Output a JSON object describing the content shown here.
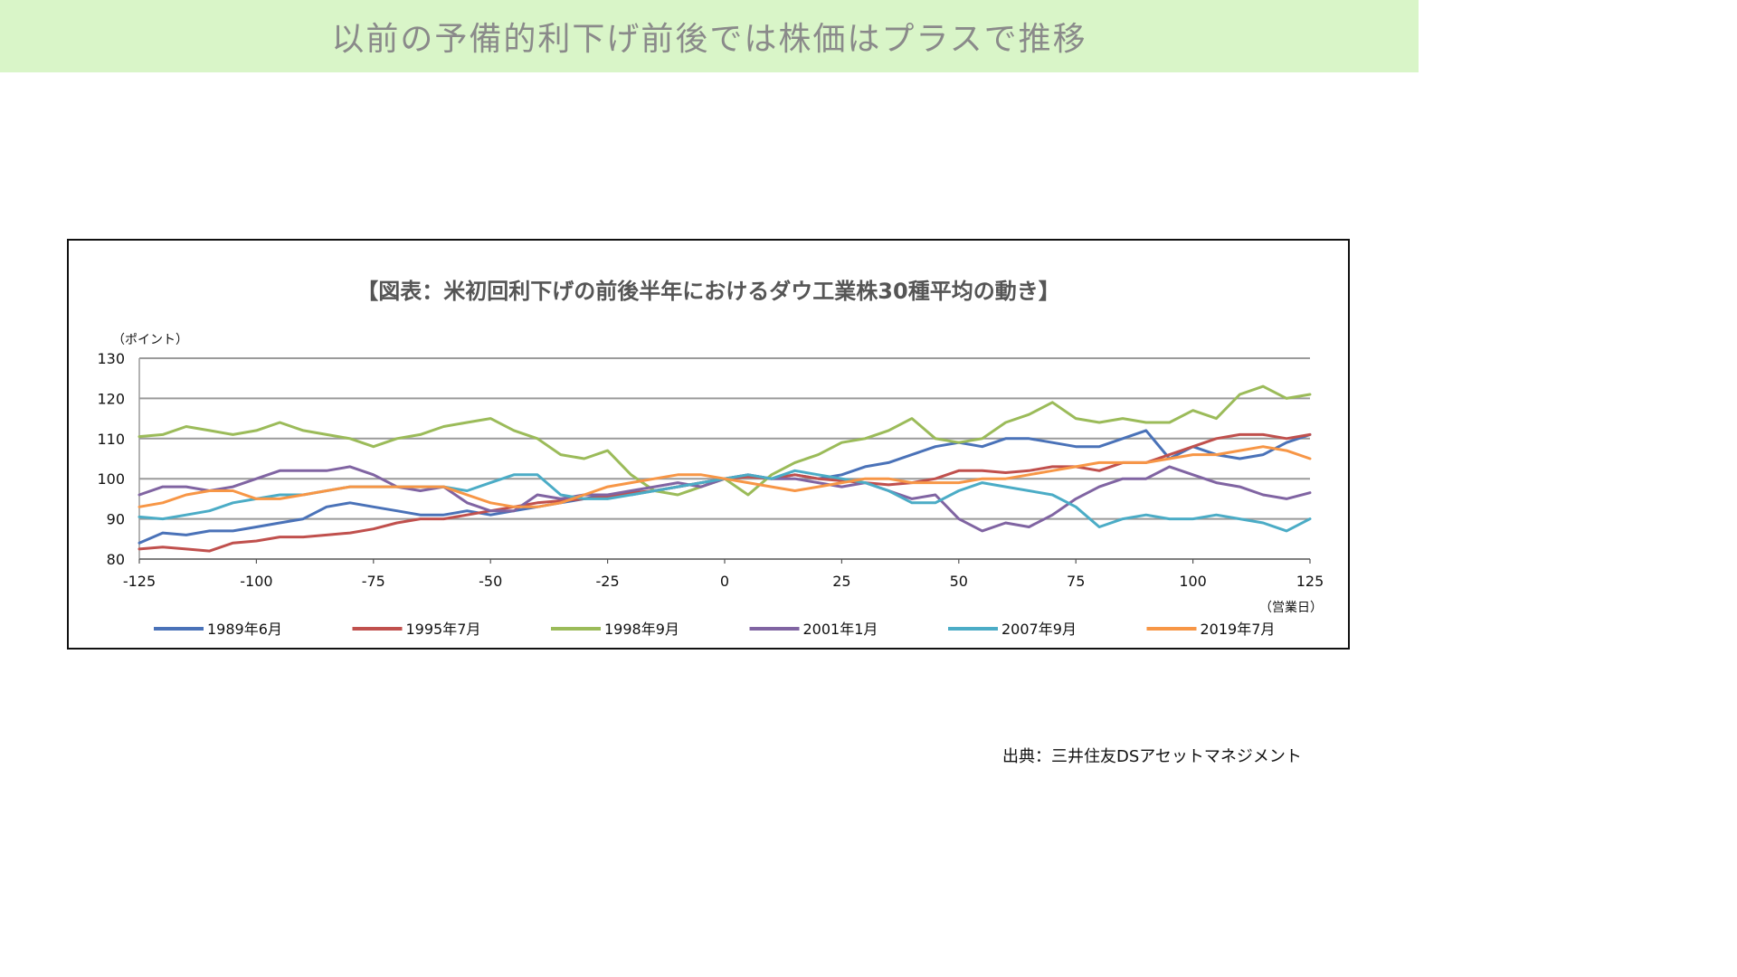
{
  "banner": {
    "title": "以前の予備的利下げ前後では株価はプラスで推移"
  },
  "source_note": "出典：三井住友DSアセットマネジメント",
  "chart_data": {
    "type": "line",
    "title": "【図表：米初回利下げの前後半年におけるダウ工業株30種平均の動き】",
    "ylabel": "（ポイント）",
    "xlabel": "（営業日）",
    "ylim": [
      80,
      130
    ],
    "yticks": [
      80,
      90,
      100,
      110,
      120,
      130
    ],
    "xlim": [
      -125,
      125
    ],
    "xticks": [
      -125,
      -100,
      -75,
      -50,
      -25,
      0,
      25,
      50,
      75,
      100,
      125
    ],
    "xtick_labels": [
      "-125",
      "-100",
      "-75",
      "-50",
      "-25",
      "0",
      "25",
      "50",
      "75",
      "100",
      "125"
    ],
    "grid": "horizontal",
    "legend_position": "bottom",
    "x": [
      -125,
      -120,
      -115,
      -110,
      -105,
      -100,
      -95,
      -90,
      -85,
      -80,
      -75,
      -70,
      -65,
      -60,
      -55,
      -50,
      -45,
      -40,
      -35,
      -30,
      -25,
      -20,
      -15,
      -10,
      -5,
      0,
      5,
      10,
      15,
      20,
      25,
      30,
      35,
      40,
      45,
      50,
      55,
      60,
      65,
      70,
      75,
      80,
      85,
      90,
      95,
      100,
      105,
      110,
      115,
      120,
      125
    ],
    "series": [
      {
        "name": "1989年6月",
        "color": "#4a72b8",
        "values": [
          84,
          86.5,
          86,
          87,
          87,
          88,
          89,
          90,
          93,
          94,
          93,
          92,
          91,
          91,
          92,
          91,
          92,
          93,
          94,
          95,
          96,
          96,
          97,
          98,
          99,
          100,
          101,
          100,
          101,
          100,
          101,
          103,
          104,
          106,
          108,
          109,
          108,
          110,
          110,
          109,
          108,
          108,
          110,
          112,
          105,
          108,
          106,
          105,
          106,
          109,
          111
        ]
      },
      {
        "name": "1995年7月",
        "color": "#c0504d",
        "values": [
          82.5,
          83,
          82.5,
          82,
          84,
          84.5,
          85.5,
          85.5,
          86,
          86.5,
          87.5,
          89,
          90,
          90,
          91,
          92,
          93,
          94,
          94.5,
          95,
          95.5,
          96.5,
          97,
          98,
          99,
          100,
          100.5,
          100,
          101,
          100,
          99.5,
          99,
          98.5,
          99,
          100,
          102,
          102,
          101.5,
          102,
          103,
          103,
          102,
          104,
          104,
          106,
          108,
          110,
          111,
          111,
          110,
          111
        ]
      },
      {
        "name": "1998年9月",
        "color": "#9bbb59",
        "values": [
          110.5,
          111,
          113,
          112,
          111,
          112,
          114,
          112,
          111,
          110,
          108,
          110,
          111,
          113,
          114,
          115,
          112,
          110,
          106,
          105,
          107,
          101,
          97,
          96,
          98,
          100,
          96,
          101,
          104,
          106,
          109,
          110,
          112,
          115,
          110,
          109,
          110,
          114,
          116,
          119,
          115,
          114,
          115,
          114,
          114,
          117,
          115,
          121,
          123,
          120,
          121
        ]
      },
      {
        "name": "2001年1月",
        "color": "#8064a2",
        "values": [
          96,
          98,
          98,
          97,
          98,
          100,
          102,
          102,
          102,
          103,
          101,
          98,
          97,
          98,
          94,
          92,
          92,
          96,
          95,
          96,
          96,
          97,
          98,
          99,
          98,
          100,
          101,
          100,
          100,
          99,
          98,
          99,
          97,
          95,
          96,
          90,
          87,
          89,
          88,
          91,
          95,
          98,
          100,
          100,
          103,
          101,
          99,
          98,
          96,
          95,
          96.5
        ]
      },
      {
        "name": "2007年9月",
        "color": "#4bacc6",
        "values": [
          90.5,
          90,
          91,
          92,
          94,
          95,
          96,
          96,
          97,
          98,
          98,
          98,
          98,
          98,
          97,
          99,
          101,
          101,
          96,
          95,
          95,
          96,
          97,
          98,
          99,
          100,
          101,
          100,
          102,
          101,
          100,
          99,
          97,
          94,
          94,
          97,
          99,
          98,
          97,
          96,
          93,
          88,
          90,
          91,
          90,
          90,
          91,
          90,
          89,
          87,
          90
        ]
      },
      {
        "name": "2019年7月",
        "color": "#f79646",
        "values": [
          93,
          94,
          96,
          97,
          97,
          95,
          95,
          96,
          97,
          98,
          98,
          98,
          98,
          98,
          96,
          94,
          93,
          93,
          94,
          96,
          98,
          99,
          100,
          101,
          101,
          100,
          99,
          98,
          97,
          98,
          99,
          100,
          100,
          99,
          99,
          99,
          100,
          100,
          101,
          102,
          103,
          104,
          104,
          104,
          105,
          106,
          106,
          107,
          108,
          107,
          105
        ]
      }
    ]
  }
}
